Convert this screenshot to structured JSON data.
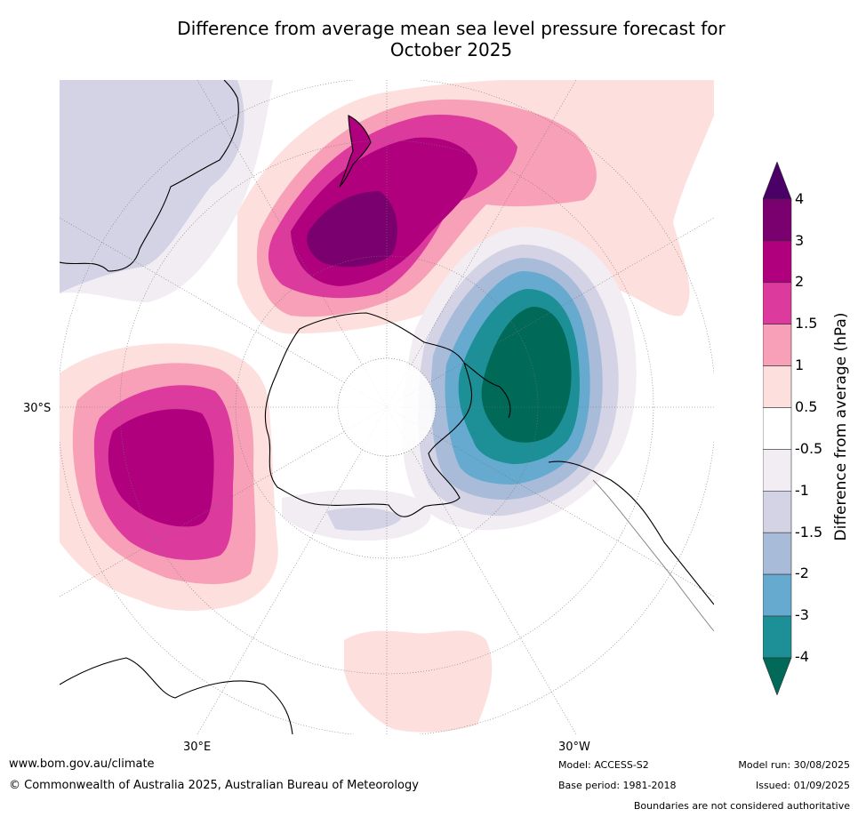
{
  "title_line1": "Difference from average mean sea level pressure forecast for",
  "title_line2": "October 2025",
  "map": {
    "latitude_label": "30°S",
    "longitude_labels": {
      "east": "30°E",
      "west": "30°W"
    },
    "projection": "south polar stereographic",
    "colors": {
      "land_outline": "#000000",
      "graticule": "#777777",
      "boundary": "#888888"
    }
  },
  "colorbar": {
    "label": "Difference from average (hPa)",
    "ticks": [
      "4",
      "3",
      "2",
      "1.5",
      "1",
      "0.5",
      "-0.5",
      "-1",
      "-1.5",
      "-2",
      "-3",
      "-4"
    ],
    "levels": [
      {
        "range": "> 4",
        "color": "#4a0066"
      },
      {
        "range": "3 to 4",
        "color": "#7a0070"
      },
      {
        "range": "2 to 3",
        "color": "#b0007e"
      },
      {
        "range": "1.5 to 2",
        "color": "#dd3a9e"
      },
      {
        "range": "1 to 1.5",
        "color": "#f8a0b8"
      },
      {
        "range": "0.5 to 1",
        "color": "#fde0de"
      },
      {
        "range": "-0.5 to 0.5",
        "color": "#ffffff"
      },
      {
        "range": "-1 to -0.5",
        "color": "#f1edf3"
      },
      {
        "range": "-1.5 to -1",
        "color": "#d3d3e5"
      },
      {
        "range": "-2 to -1.5",
        "color": "#a8bbd8"
      },
      {
        "range": "-3 to -2",
        "color": "#66aad0"
      },
      {
        "range": "-4 to -3",
        "color": "#1c9096"
      },
      {
        "range": "< -4",
        "color": "#006957"
      }
    ]
  },
  "footer": {
    "website": "www.bom.gov.au/climate",
    "copyright": "© Commonwealth of Australia 2025, Australian Bureau of Meteorology",
    "model": "Model: ACCESS-S2",
    "base_period": "Base period: 1981-2018",
    "model_run": "Model run: 30/08/2025",
    "issued": "Issued: 01/09/2025",
    "disclaimer": "Boundaries are not considered authoritative"
  }
}
